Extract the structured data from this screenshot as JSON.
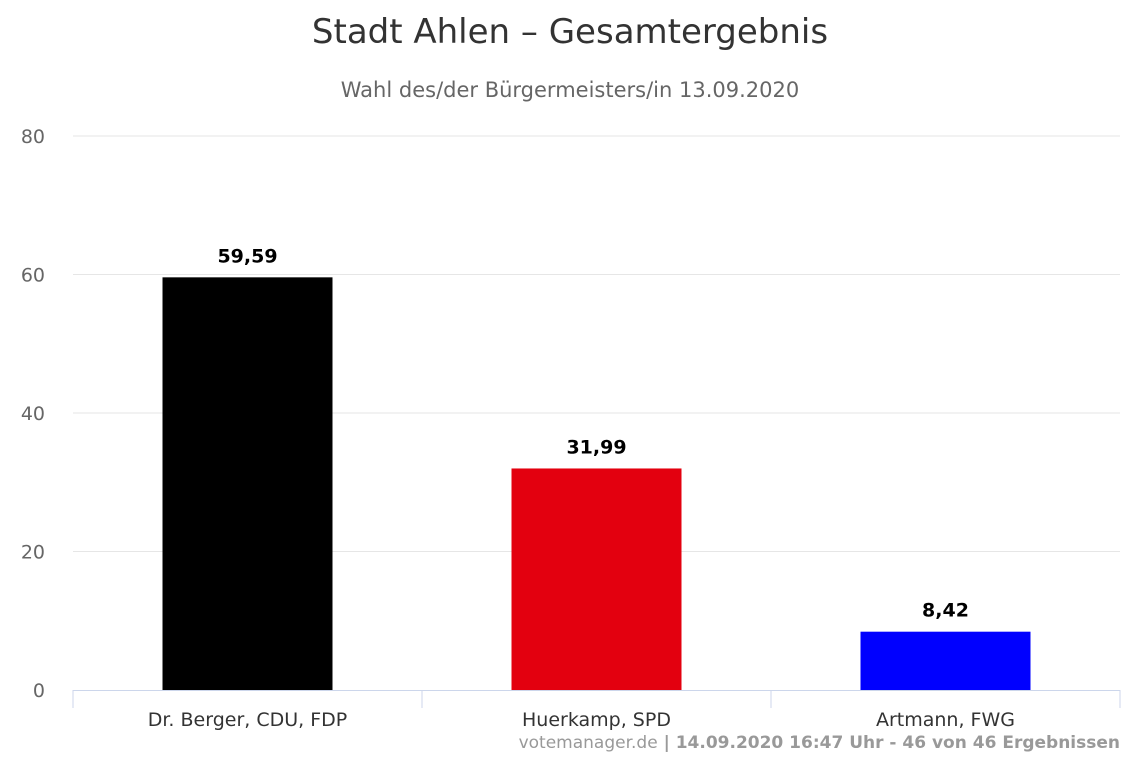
{
  "chart_data": {
    "type": "bar",
    "title": "Stadt Ahlen – Gesamtergebnis",
    "subtitle": "Wahl des/der Bürgermeisters/in 13.09.2020",
    "categories": [
      "Dr. Berger, CDU, FDP",
      "Huerkamp, SPD",
      "Artmann, FWG"
    ],
    "values": [
      59.59,
      31.99,
      8.42
    ],
    "value_labels": [
      "59,59",
      "31,99",
      "8,42"
    ],
    "colors": [
      "#000000",
      "#e3000f",
      "#0000ff"
    ],
    "ylim": [
      0,
      80
    ],
    "yticks": [
      0,
      20,
      40,
      60,
      80
    ],
    "grid": true,
    "legend": "none",
    "xlabel": "",
    "ylabel": ""
  },
  "credits": {
    "site": "votemanager.de",
    "stamp": " | 14.09.2020 16:47 Uhr - 46 von 46 Ergebnissen"
  }
}
